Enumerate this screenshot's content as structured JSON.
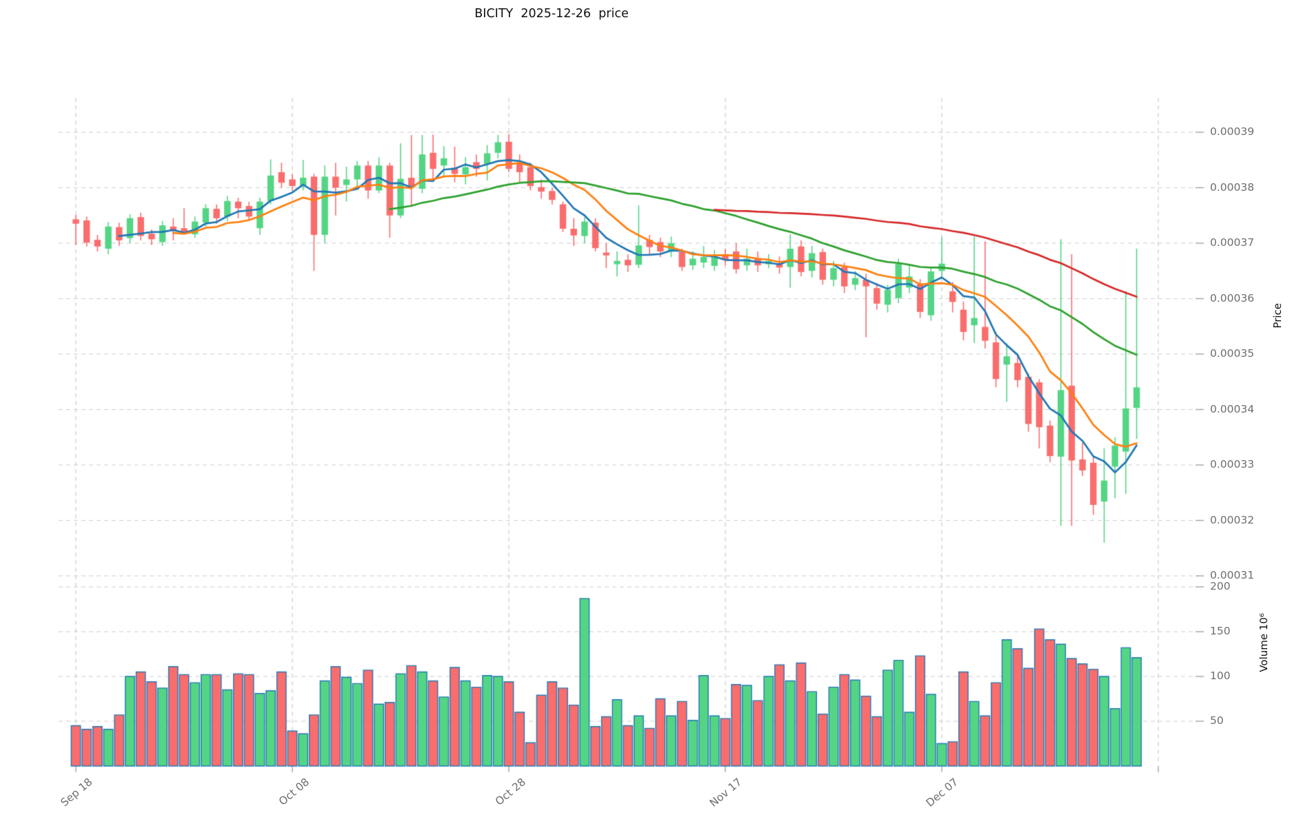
{
  "title": "BICITY  2025-12-26  price",
  "price_axis": {
    "label": "Price",
    "ticks": [
      {
        "label": "0.00039",
        "value": 390
      },
      {
        "label": "0.00038",
        "value": 380
      },
      {
        "label": "0.00037",
        "value": 370
      },
      {
        "label": "0.00036",
        "value": 360
      },
      {
        "label": "0.00035",
        "value": 350
      },
      {
        "label": "0.00034",
        "value": 340
      },
      {
        "label": "0.00033",
        "value": 330
      },
      {
        "label": "0.00032",
        "value": 320
      },
      {
        "label": "0.00031",
        "value": 310
      }
    ]
  },
  "volume_axis": {
    "label": "Volume 10⁶",
    "ticks": [
      {
        "label": "200",
        "value": 200
      },
      {
        "label": "150",
        "value": 150
      },
      {
        "label": "100",
        "value": 100
      },
      {
        "label": "50",
        "value": 50
      }
    ]
  },
  "x_axis": {
    "ticks": [
      {
        "label": "Sep 18",
        "index": 0
      },
      {
        "label": "Oct 08",
        "index": 20
      },
      {
        "label": "Oct 28",
        "index": 40
      },
      {
        "label": "Nov 17",
        "index": 60
      },
      {
        "label": "Dec 07",
        "index": 80
      },
      {
        "label": "",
        "index": 100
      }
    ]
  },
  "chart_data": {
    "type": "candlestick",
    "title": "BICITY  2025-12-26  price",
    "ylabel": "Price",
    "ylabel2": "Volume 10⁶",
    "price_unit_note": "ohlc values are price × 1e-6",
    "ylim_price": [
      0.00031,
      0.00039
    ],
    "ylim_volume_millions": [
      0,
      200
    ],
    "grid": "dashed",
    "ma_windows": [
      5,
      10,
      30,
      60
    ],
    "ma_colors": [
      "#1f77b4",
      "#ff7f0e",
      "#2ca02c",
      "#d62728"
    ],
    "up_color": "#54d584",
    "down_color": "#fa6d6d",
    "volume_edge_color": "#2077b4",
    "grid_color": "#cccccc",
    "tick_text_color": "#6e6e6e",
    "ohlc_micro": [
      [
        374.3,
        375.1,
        369.7,
        373.5
      ],
      [
        374.1,
        374.8,
        369.4,
        370.1
      ],
      [
        370.6,
        371.5,
        368.5,
        369.4
      ],
      [
        369.0,
        373.8,
        368.0,
        373.0
      ],
      [
        372.9,
        373.7,
        369.5,
        370.5
      ],
      [
        370.9,
        375.2,
        370.0,
        374.5
      ],
      [
        374.7,
        375.5,
        370.5,
        371.3
      ],
      [
        371.7,
        372.5,
        369.7,
        370.7
      ],
      [
        370.2,
        374.0,
        369.5,
        373.2
      ],
      [
        373.0,
        374.5,
        370.5,
        372.2
      ],
      [
        372.7,
        376.3,
        371.6,
        372.1
      ],
      [
        371.6,
        374.8,
        371.0,
        373.9
      ],
      [
        373.7,
        377.0,
        373.0,
        376.3
      ],
      [
        376.2,
        377.0,
        373.5,
        374.5
      ],
      [
        374.8,
        378.5,
        374.0,
        377.6
      ],
      [
        377.5,
        378.2,
        374.5,
        376.3
      ],
      [
        376.7,
        377.5,
        374.0,
        374.8
      ],
      [
        372.7,
        378.2,
        371.5,
        377.5
      ],
      [
        377.6,
        385.1,
        377.0,
        382.2
      ],
      [
        382.8,
        384.5,
        380.0,
        380.9
      ],
      [
        381.5,
        382.5,
        379.5,
        380.3
      ],
      [
        380.3,
        385.0,
        379.5,
        381.8
      ],
      [
        382.0,
        382.5,
        365.0,
        371.5
      ],
      [
        371.5,
        384.0,
        370.0,
        382.0
      ],
      [
        382.0,
        384.5,
        375.0,
        380.0
      ],
      [
        380.5,
        383.8,
        377.5,
        381.5
      ],
      [
        381.5,
        384.8,
        380.0,
        384.0
      ],
      [
        384.0,
        384.8,
        378.0,
        379.5
      ],
      [
        379.5,
        385.5,
        379.0,
        384.0
      ],
      [
        384.0,
        384.5,
        371.0,
        375.0
      ],
      [
        375.0,
        388.0,
        374.5,
        381.6
      ],
      [
        381.8,
        389.5,
        376.5,
        380.0
      ],
      [
        379.8,
        389.5,
        379.0,
        386.0
      ],
      [
        386.3,
        389.6,
        381.3,
        383.4
      ],
      [
        384.0,
        387.5,
        381.8,
        385.3
      ],
      [
        383.6,
        387.4,
        381.0,
        382.5
      ],
      [
        382.4,
        385.5,
        380.6,
        383.7
      ],
      [
        384.6,
        386.0,
        382.0,
        383.4
      ],
      [
        384.3,
        387.7,
        381.3,
        386.2
      ],
      [
        386.3,
        389.5,
        385.3,
        388.2
      ],
      [
        388.3,
        389.7,
        382.8,
        383.4
      ],
      [
        384.4,
        386.0,
        381.0,
        382.8
      ],
      [
        383.7,
        384.5,
        379.5,
        380.3
      ],
      [
        380.1,
        381.5,
        378.0,
        379.3
      ],
      [
        379.4,
        380.0,
        377.0,
        377.8
      ],
      [
        377.0,
        377.5,
        372.0,
        372.6
      ],
      [
        372.6,
        374.5,
        369.5,
        371.4
      ],
      [
        371.3,
        374.7,
        370.0,
        373.9
      ],
      [
        373.7,
        374.5,
        368.5,
        369.1
      ],
      [
        368.3,
        370.0,
        365.5,
        367.8
      ],
      [
        366.2,
        368.5,
        364.0,
        366.8
      ],
      [
        367.0,
        368.0,
        364.8,
        366.0
      ],
      [
        366.1,
        376.8,
        365.5,
        369.6
      ],
      [
        370.6,
        371.5,
        368.0,
        369.3
      ],
      [
        370.2,
        371.0,
        367.5,
        368.5
      ],
      [
        368.5,
        371.2,
        367.5,
        370.0
      ],
      [
        368.4,
        369.0,
        365.0,
        365.7
      ],
      [
        366.0,
        368.5,
        365.2,
        367.2
      ],
      [
        366.5,
        369.5,
        365.5,
        367.5
      ],
      [
        365.9,
        368.8,
        365.0,
        367.5
      ],
      [
        368.0,
        369.0,
        366.0,
        367.0
      ],
      [
        368.5,
        370.0,
        364.5,
        365.3
      ],
      [
        366.0,
        369.0,
        365.0,
        367.2
      ],
      [
        367.2,
        368.5,
        364.8,
        366.0
      ],
      [
        366.2,
        368.0,
        365.5,
        366.8
      ],
      [
        366.4,
        367.6,
        364.5,
        365.6
      ],
      [
        365.7,
        371.6,
        362.0,
        369.0
      ],
      [
        369.4,
        370.5,
        364.0,
        364.8
      ],
      [
        365.0,
        369.5,
        363.8,
        368.2
      ],
      [
        368.4,
        369.0,
        362.5,
        363.4
      ],
      [
        363.4,
        366.8,
        362.2,
        365.5
      ],
      [
        365.7,
        366.5,
        361.0,
        362.2
      ],
      [
        362.5,
        365.0,
        361.5,
        363.7
      ],
      [
        363.4,
        364.5,
        353.0,
        362.2
      ],
      [
        361.9,
        362.8,
        358.0,
        359.1
      ],
      [
        358.9,
        362.5,
        357.5,
        361.6
      ],
      [
        360.1,
        367.2,
        359.2,
        366.3
      ],
      [
        362.0,
        366.2,
        361.0,
        364.0
      ],
      [
        362.6,
        363.5,
        356.5,
        357.6
      ],
      [
        357.0,
        365.5,
        356.0,
        364.9
      ],
      [
        365.0,
        371.1,
        363.5,
        366.3
      ],
      [
        361.3,
        363.0,
        357.5,
        359.4
      ],
      [
        358.0,
        359.5,
        352.5,
        354.0
      ],
      [
        355.2,
        371.2,
        352.0,
        356.5
      ],
      [
        354.9,
        370.3,
        351.0,
        352.4
      ],
      [
        352.1,
        354.0,
        344.0,
        345.5
      ],
      [
        348.1,
        352.0,
        341.4,
        349.6
      ],
      [
        348.4,
        350.0,
        344.0,
        345.3
      ],
      [
        345.9,
        346.5,
        336.0,
        337.4
      ],
      [
        344.9,
        345.5,
        333.0,
        336.8
      ],
      [
        337.1,
        338.0,
        330.5,
        331.6
      ],
      [
        331.5,
        370.7,
        319.0,
        343.5
      ],
      [
        344.3,
        368.0,
        319.0,
        330.8
      ],
      [
        331.0,
        334.0,
        328.0,
        329.0
      ],
      [
        330.4,
        331.5,
        321.0,
        322.8
      ],
      [
        323.4,
        333.0,
        316.0,
        327.2
      ],
      [
        329.7,
        335.0,
        324.0,
        333.5
      ],
      [
        332.4,
        361.4,
        324.8,
        340.2
      ],
      [
        340.3,
        369.0,
        334.7,
        344.0
      ]
    ],
    "volume_millions": [
      45,
      41,
      44,
      41,
      57,
      100,
      105,
      94,
      87,
      111,
      102,
      93,
      102,
      102,
      85,
      103,
      102,
      81,
      84,
      105,
      39,
      36,
      57,
      95,
      111,
      99,
      92,
      107,
      69,
      71,
      103,
      112,
      105,
      95,
      77,
      110,
      95,
      88,
      101,
      100,
      94,
      60,
      26,
      79,
      94,
      87,
      68,
      187,
      44,
      55,
      74,
      45,
      56,
      42,
      75,
      56,
      72,
      51,
      101,
      56,
      53,
      91,
      90,
      73,
      100,
      113,
      95,
      115,
      83,
      58,
      88,
      102,
      96,
      78,
      55,
      107,
      118,
      60,
      123,
      80,
      25,
      27,
      105,
      72,
      56,
      93,
      141,
      131,
      109,
      153,
      141,
      136,
      120,
      114,
      108,
      100,
      64,
      132,
      121
    ]
  }
}
